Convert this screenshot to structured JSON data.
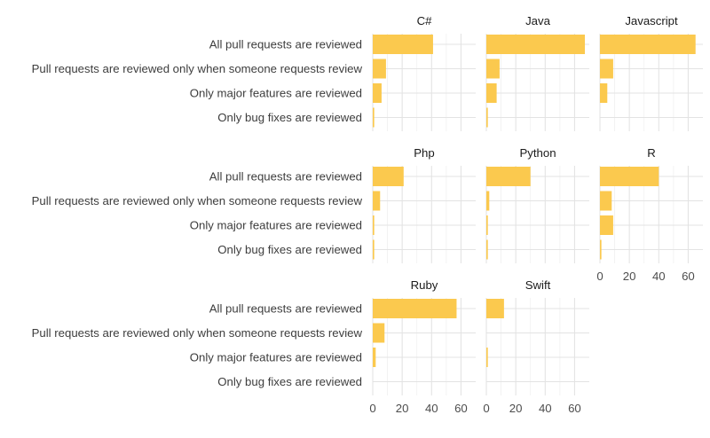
{
  "chart_data": {
    "type": "bar",
    "orientation": "horizontal",
    "faceted": true,
    "bar_color": "#FBC94E",
    "grid": true,
    "xlim": [
      0,
      70
    ],
    "xticks": [
      0,
      20,
      40,
      60
    ],
    "categories": [
      "All pull requests are reviewed",
      "Pull requests are reviewed only when someone requests review",
      "Only major features are reviewed",
      "Only bug fixes are reviewed"
    ],
    "panels": [
      {
        "title": "C#",
        "values": [
          41,
          9,
          6,
          1
        ]
      },
      {
        "title": "Java",
        "values": [
          67,
          9,
          7,
          1
        ]
      },
      {
        "title": "Javascript",
        "values": [
          65,
          9,
          5,
          0
        ]
      },
      {
        "title": "Php",
        "values": [
          21,
          5,
          1,
          1
        ]
      },
      {
        "title": "Python",
        "values": [
          30,
          2,
          1,
          1
        ]
      },
      {
        "title": "R",
        "values": [
          40,
          8,
          9,
          1
        ]
      },
      {
        "title": "Ruby",
        "values": [
          57,
          8,
          2,
          0
        ]
      },
      {
        "title": "Swift",
        "values": [
          12,
          0,
          1,
          0
        ]
      }
    ]
  }
}
